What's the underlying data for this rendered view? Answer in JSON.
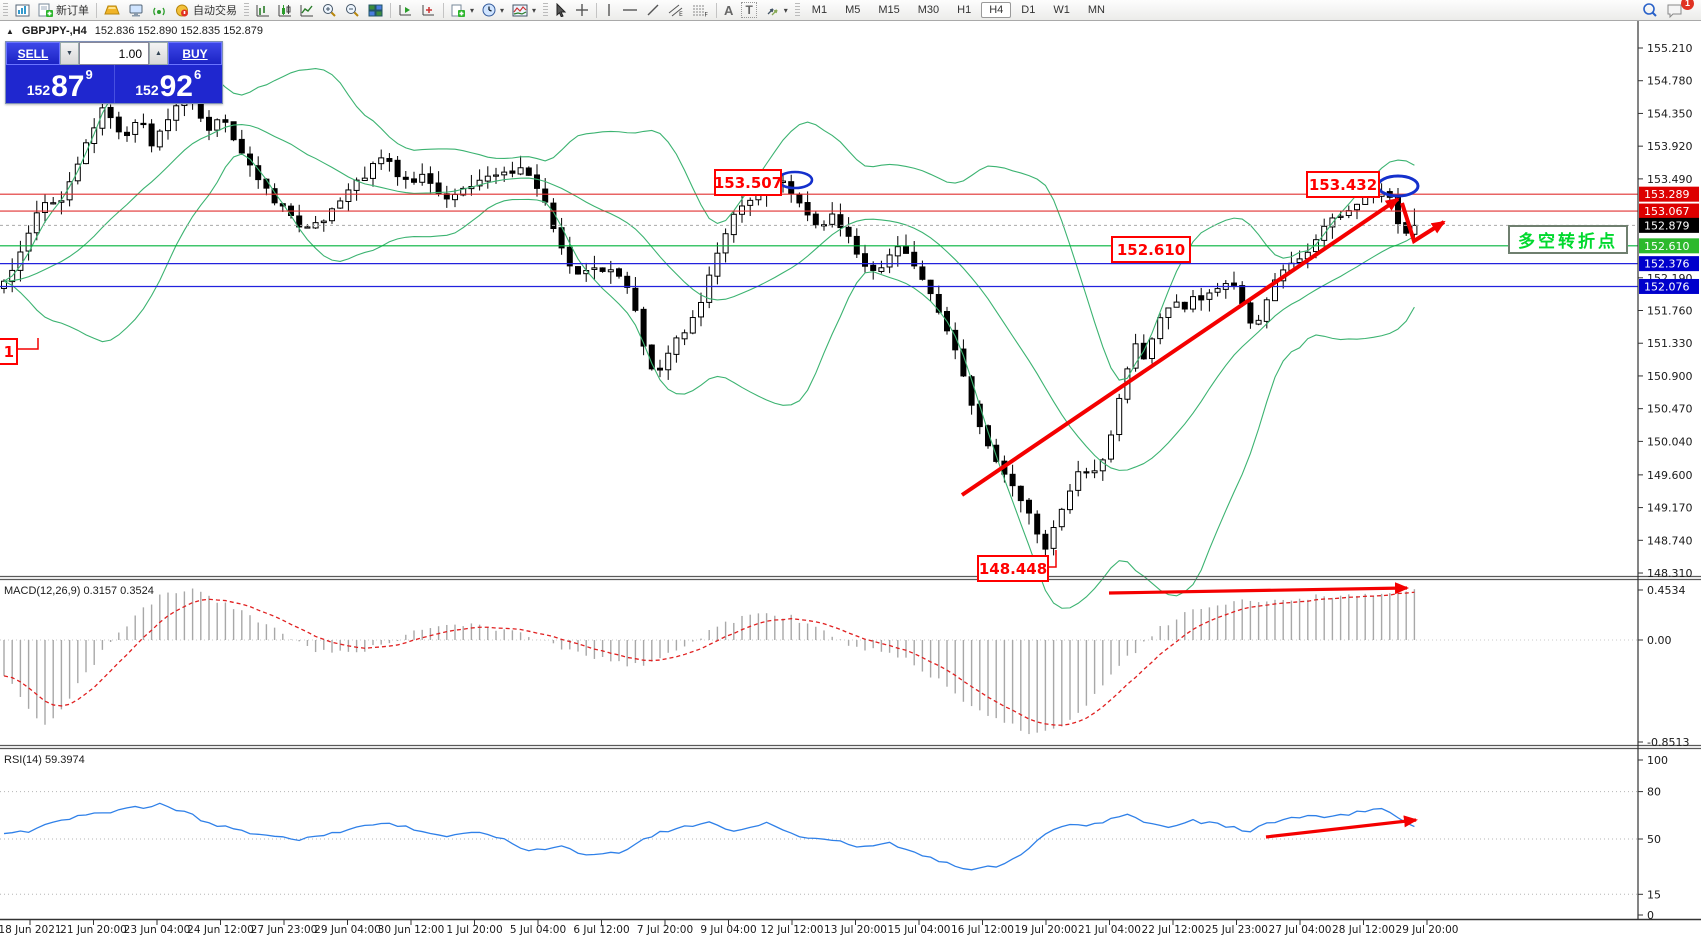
{
  "toolbar": {
    "new_order_label": "新订单",
    "auto_trading_label": "自动交易",
    "text_tool": "A",
    "label_tool": "T",
    "timeframes": [
      "M1",
      "M5",
      "M15",
      "M30",
      "H1",
      "H4",
      "D1",
      "W1",
      "MN"
    ],
    "active_timeframe": "H4",
    "notification_badge": "1"
  },
  "chart_header": {
    "collapse_arrow": "▲",
    "symbol_period": "GBPJPY-,H4",
    "ohlc_line": "152.836 152.890 152.835 152.879"
  },
  "trade_panel": {
    "sell_label": "SELL",
    "buy_label": "BUY",
    "volume": "1.00",
    "sell_prefix": "152",
    "sell_big": "87",
    "sell_sup": "9",
    "buy_prefix": "152",
    "buy_big": "92",
    "buy_sup": "6"
  },
  "indicators": {
    "macd_label": "MACD(12,26,9) 0.3157 0.3524",
    "rsi_label": "RSI(14) 59.3974"
  },
  "annotations": {
    "swing_high_1": "153.507",
    "swing_high_2": "153.432",
    "swing_low": "148.448",
    "support_mid": "152.610",
    "note_text": "多空转折点",
    "left_partial": "1"
  },
  "price_axis": {
    "ticks": [
      155.21,
      154.78,
      154.35,
      153.92,
      153.49,
      152.19,
      151.76,
      151.33,
      150.9,
      150.47,
      150.04,
      149.6,
      149.17,
      148.74,
      148.31
    ],
    "badges": [
      {
        "text": "153.289",
        "price": 153.289,
        "color": "#dd0000"
      },
      {
        "text": "153.067",
        "price": 153.067,
        "color": "#dd0000"
      },
      {
        "text": "152.879",
        "price": 152.879,
        "color": "#000000"
      },
      {
        "text": "152.610",
        "price": 152.61,
        "color": "#2db92d"
      },
      {
        "text": "152.376",
        "price": 152.376,
        "color": "#0000cc"
      },
      {
        "text": "152.076",
        "price": 152.076,
        "color": "#0000cc"
      }
    ]
  },
  "macd_axis": [
    "0.4534",
    "0.00",
    "-0.8513"
  ],
  "rsi_axis": [
    {
      "v": 100,
      "t": "100"
    },
    {
      "v": 80,
      "t": "80"
    },
    {
      "v": 50,
      "t": "50"
    },
    {
      "v": 15,
      "t": "15"
    },
    {
      "v": 0,
      "t": "0"
    }
  ],
  "rsi_levels": [
    80,
    50,
    15
  ],
  "time_axis": [
    "18 Jun 2021",
    "21 Jun 20:00",
    "23 Jun 04:00",
    "24 Jun 12:00",
    "27 Jun 23:00",
    "29 Jun 04:00",
    "30 Jun 12:00",
    "1 Jul 20:00",
    "5 Jul 04:00",
    "6 Jul 12:00",
    "7 Jul 20:00",
    "9 Jul 04:00",
    "12 Jul 12:00",
    "13 Jul 20:00",
    "15 Jul 04:00",
    "16 Jul 12:00",
    "19 Jul 20:00",
    "21 Jul 04:00",
    "22 Jul 12:00",
    "25 Jul 23:00",
    "27 Jul 04:00",
    "28 Jul 12:00",
    "29 Jul 20:00"
  ],
  "chart_data": {
    "type": "candlestick",
    "symbol": "GBPJPY-",
    "period": "H4",
    "bollinger_color": "#3cb371",
    "candle_up_fill": "#ffffff",
    "candle_down_fill": "#000000",
    "macd_hist_color": "#a8a8a8",
    "macd_signal_color": "#e02020",
    "rsi_line_color": "#2f80e8",
    "annotation_red": "#f40000",
    "ellipse_blue": "#1430cc",
    "levels": [
      {
        "price": 153.289,
        "color": "#e03030",
        "style": "solid"
      },
      {
        "price": 153.067,
        "color": "#e03030",
        "style": "solid"
      },
      {
        "price": 152.879,
        "color": "#aaaaaa",
        "style": "dashed"
      },
      {
        "price": 152.61,
        "color": "#00b33c",
        "style": "solid"
      },
      {
        "price": 152.376,
        "color": "#2222dd",
        "style": "solid"
      },
      {
        "price": 152.076,
        "color": "#2222dd",
        "style": "solid"
      }
    ],
    "key_points": {
      "swing_high_1": 153.507,
      "swing_high_2": 153.432,
      "swing_low": 148.448,
      "last_close": 152.879
    },
    "macd_values": {
      "macd": 0.3157,
      "signal": 0.3524,
      "scale_max": 0.4534,
      "scale_min": -0.8513
    },
    "rsi_value": 59.3974,
    "price_path": [
      [
        0,
        152.0
      ],
      [
        12,
        152.3
      ],
      [
        25,
        152.7
      ],
      [
        45,
        153.2
      ],
      [
        60,
        153.15
      ],
      [
        75,
        153.6
      ],
      [
        90,
        154.1
      ],
      [
        105,
        154.45
      ],
      [
        115,
        154.15
      ],
      [
        125,
        154.0
      ],
      [
        140,
        154.3
      ],
      [
        152,
        153.95
      ],
      [
        168,
        154.3
      ],
      [
        182,
        154.62
      ],
      [
        195,
        154.5
      ],
      [
        205,
        154.1
      ],
      [
        218,
        154.32
      ],
      [
        230,
        154.12
      ],
      [
        242,
        153.85
      ],
      [
        255,
        153.55
      ],
      [
        268,
        153.3
      ],
      [
        282,
        153.1
      ],
      [
        295,
        152.95
      ],
      [
        310,
        152.8
      ],
      [
        322,
        152.95
      ],
      [
        335,
        153.1
      ],
      [
        350,
        153.35
      ],
      [
        365,
        153.55
      ],
      [
        378,
        153.7
      ],
      [
        388,
        153.78
      ],
      [
        398,
        153.55
      ],
      [
        410,
        153.45
      ],
      [
        422,
        153.55
      ],
      [
        435,
        153.35
      ],
      [
        448,
        153.25
      ],
      [
        460,
        153.35
      ],
      [
        475,
        153.45
      ],
      [
        490,
        153.55
      ],
      [
        505,
        153.6
      ],
      [
        520,
        153.62
      ],
      [
        532,
        153.5
      ],
      [
        545,
        153.2
      ],
      [
        558,
        152.7
      ],
      [
        570,
        152.35
      ],
      [
        582,
        152.2
      ],
      [
        595,
        152.35
      ],
      [
        608,
        152.3
      ],
      [
        620,
        152.25
      ],
      [
        632,
        151.9
      ],
      [
        645,
        151.2
      ],
      [
        655,
        150.85
      ],
      [
        665,
        151.1
      ],
      [
        675,
        151.35
      ],
      [
        688,
        151.5
      ],
      [
        700,
        151.8
      ],
      [
        712,
        152.3
      ],
      [
        722,
        152.7
      ],
      [
        732,
        152.95
      ],
      [
        745,
        153.15
      ],
      [
        758,
        153.25
      ],
      [
        772,
        153.4
      ],
      [
        783,
        153.45
      ],
      [
        795,
        153.2
      ],
      [
        808,
        153.0
      ],
      [
        820,
        152.85
      ],
      [
        832,
        153.0
      ],
      [
        845,
        152.8
      ],
      [
        858,
        152.45
      ],
      [
        870,
        152.2
      ],
      [
        882,
        152.35
      ],
      [
        895,
        152.65
      ],
      [
        908,
        152.5
      ],
      [
        920,
        152.2
      ],
      [
        932,
        151.95
      ],
      [
        945,
        151.6
      ],
      [
        958,
        151.15
      ],
      [
        970,
        150.6
      ],
      [
        982,
        150.1
      ],
      [
        995,
        149.75
      ],
      [
        1008,
        149.6
      ],
      [
        1020,
        149.3
      ],
      [
        1032,
        149.0
      ],
      [
        1047,
        148.62
      ],
      [
        1058,
        149.05
      ],
      [
        1068,
        149.35
      ],
      [
        1080,
        149.65
      ],
      [
        1092,
        149.55
      ],
      [
        1105,
        149.9
      ],
      [
        1115,
        150.35
      ],
      [
        1125,
        150.9
      ],
      [
        1135,
        151.3
      ],
      [
        1145,
        151.15
      ],
      [
        1155,
        151.5
      ],
      [
        1165,
        151.75
      ],
      [
        1175,
        151.9
      ],
      [
        1185,
        151.8
      ],
      [
        1195,
        152.0
      ],
      [
        1205,
        151.9
      ],
      [
        1215,
        152.05
      ],
      [
        1225,
        152.15
      ],
      [
        1235,
        152.05
      ],
      [
        1245,
        151.75
      ],
      [
        1255,
        151.55
      ],
      [
        1265,
        151.85
      ],
      [
        1275,
        152.15
      ],
      [
        1285,
        152.3
      ],
      [
        1295,
        152.4
      ],
      [
        1305,
        152.5
      ],
      [
        1315,
        152.65
      ],
      [
        1325,
        152.85
      ],
      [
        1335,
        153.0
      ],
      [
        1345,
        153.05
      ],
      [
        1355,
        153.15
      ],
      [
        1365,
        153.3
      ],
      [
        1375,
        153.25
      ],
      [
        1385,
        153.42
      ],
      [
        1393,
        153.2
      ],
      [
        1400,
        152.85
      ],
      [
        1408,
        152.7
      ],
      [
        1415,
        152.95
      ],
      [
        1422,
        152.88
      ]
    ],
    "macd_path": [
      [
        0,
        -0.25
      ],
      [
        25,
        -0.55
      ],
      [
        45,
        -0.72
      ],
      [
        65,
        -0.55
      ],
      [
        85,
        -0.3
      ],
      [
        110,
        -0.02
      ],
      [
        140,
        0.26
      ],
      [
        165,
        0.4
      ],
      [
        190,
        0.42
      ],
      [
        215,
        0.34
      ],
      [
        245,
        0.22
      ],
      [
        275,
        0.08
      ],
      [
        305,
        -0.05
      ],
      [
        330,
        -0.12
      ],
      [
        360,
        -0.1
      ],
      [
        390,
        -0.02
      ],
      [
        420,
        0.08
      ],
      [
        450,
        0.13
      ],
      [
        480,
        0.12
      ],
      [
        510,
        0.07
      ],
      [
        540,
        0.0
      ],
      [
        565,
        -0.08
      ],
      [
        590,
        -0.14
      ],
      [
        615,
        -0.18
      ],
      [
        640,
        -0.22
      ],
      [
        665,
        -0.15
      ],
      [
        690,
        -0.02
      ],
      [
        715,
        0.1
      ],
      [
        740,
        0.18
      ],
      [
        765,
        0.22
      ],
      [
        790,
        0.2
      ],
      [
        815,
        0.1
      ],
      [
        840,
        0.0
      ],
      [
        865,
        -0.08
      ],
      [
        890,
        -0.1
      ],
      [
        915,
        -0.2
      ],
      [
        940,
        -0.35
      ],
      [
        965,
        -0.52
      ],
      [
        990,
        -0.65
      ],
      [
        1015,
        -0.74
      ],
      [
        1040,
        -0.8
      ],
      [
        1060,
        -0.74
      ],
      [
        1080,
        -0.6
      ],
      [
        1100,
        -0.42
      ],
      [
        1120,
        -0.22
      ],
      [
        1140,
        -0.05
      ],
      [
        1160,
        0.1
      ],
      [
        1180,
        0.2
      ],
      [
        1200,
        0.27
      ],
      [
        1225,
        0.32
      ],
      [
        1250,
        0.34
      ],
      [
        1275,
        0.35
      ],
      [
        1300,
        0.36
      ],
      [
        1325,
        0.37
      ],
      [
        1350,
        0.38
      ],
      [
        1375,
        0.4
      ],
      [
        1400,
        0.43
      ],
      [
        1422,
        0.45
      ]
    ],
    "rsi_path": [
      [
        0,
        52
      ],
      [
        30,
        55
      ],
      [
        60,
        62
      ],
      [
        90,
        65
      ],
      [
        120,
        68
      ],
      [
        150,
        71
      ],
      [
        165,
        72
      ],
      [
        180,
        68
      ],
      [
        210,
        60
      ],
      [
        240,
        55
      ],
      [
        270,
        52
      ],
      [
        300,
        50
      ],
      [
        330,
        53
      ],
      [
        360,
        58
      ],
      [
        390,
        60
      ],
      [
        420,
        55
      ],
      [
        450,
        52
      ],
      [
        480,
        54
      ],
      [
        510,
        48
      ],
      [
        530,
        42
      ],
      [
        560,
        45
      ],
      [
        590,
        40
      ],
      [
        620,
        42
      ],
      [
        650,
        52
      ],
      [
        680,
        58
      ],
      [
        710,
        60
      ],
      [
        730,
        55
      ],
      [
        750,
        58
      ],
      [
        770,
        60
      ],
      [
        800,
        52
      ],
      [
        830,
        50
      ],
      [
        860,
        45
      ],
      [
        890,
        48
      ],
      [
        910,
        42
      ],
      [
        930,
        38
      ],
      [
        950,
        35
      ],
      [
        970,
        30
      ],
      [
        990,
        32
      ],
      [
        1010,
        35
      ],
      [
        1030,
        45
      ],
      [
        1050,
        55
      ],
      [
        1070,
        60
      ],
      [
        1090,
        58
      ],
      [
        1110,
        62
      ],
      [
        1130,
        65
      ],
      [
        1150,
        60
      ],
      [
        1170,
        58
      ],
      [
        1190,
        62
      ],
      [
        1210,
        60
      ],
      [
        1230,
        58
      ],
      [
        1250,
        55
      ],
      [
        1270,
        60
      ],
      [
        1290,
        63
      ],
      [
        1310,
        65
      ],
      [
        1330,
        64
      ],
      [
        1350,
        66
      ],
      [
        1370,
        68
      ],
      [
        1385,
        70
      ],
      [
        1400,
        62
      ],
      [
        1412,
        58
      ],
      [
        1422,
        59.4
      ]
    ]
  }
}
